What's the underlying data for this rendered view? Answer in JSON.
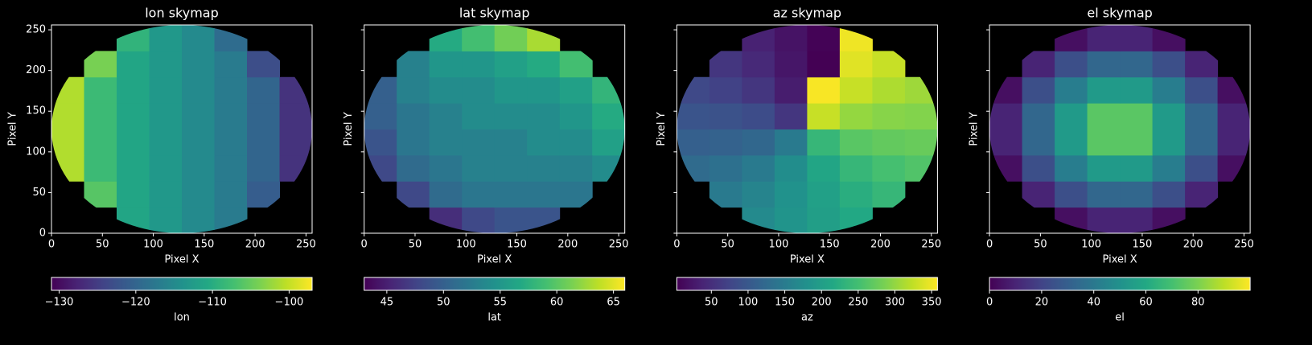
{
  "chart_data": [
    {
      "type": "heatmap",
      "title": "lon skymap",
      "xlabel": "Pixel X",
      "ylabel": "Pixel Y",
      "xlim": [
        0,
        256
      ],
      "ylim": [
        0,
        256
      ],
      "xticks": [
        0,
        50,
        100,
        150,
        200,
        250
      ],
      "yticks": [
        0,
        50,
        100,
        150,
        200,
        250
      ],
      "ytick_labels": true,
      "colormap": "viridis",
      "clim": [
        -131,
        -97
      ],
      "colorbar_ticks": [
        {
          "value": -130,
          "label": "−130"
        },
        {
          "value": -120,
          "label": "−120"
        },
        {
          "value": -110,
          "label": "−110"
        },
        {
          "value": -100,
          "label": "−100"
        }
      ],
      "colorbar_label": "lon",
      "z": [
        [
          null,
          null,
          -111,
          -113,
          -115,
          -117,
          null,
          null
        ],
        [
          null,
          -106,
          -111,
          -113,
          -115,
          -117,
          -121,
          null
        ],
        [
          -101,
          -108,
          -111,
          -113,
          -115,
          -117,
          -120,
          -126
        ],
        [
          -101,
          -108,
          -111,
          -113,
          -115,
          -117,
          -120,
          -126
        ],
        [
          -101,
          -108,
          -111,
          -113,
          -115,
          -117,
          -120,
          -126
        ],
        [
          -101,
          -108,
          -111,
          -113,
          -115,
          -117,
          -120,
          -126
        ],
        [
          null,
          -104,
          -111,
          -113,
          -115,
          -117,
          -123,
          null
        ],
        [
          null,
          null,
          -109,
          -113,
          -115,
          -119,
          null,
          null
        ]
      ]
    },
    {
      "type": "heatmap",
      "title": "lat skymap",
      "xlabel": "Pixel X",
      "ylabel": "Pixel Y",
      "xlim": [
        0,
        256
      ],
      "ylim": [
        0,
        256
      ],
      "xticks": [
        0,
        50,
        100,
        150,
        200,
        250
      ],
      "yticks": [
        0,
        50,
        100,
        150,
        200,
        250
      ],
      "ytick_labels": false,
      "colormap": "viridis",
      "clim": [
        43,
        66
      ],
      "colorbar_ticks": [
        45,
        50,
        55,
        60,
        65
      ],
      "colorbar_label": "lat",
      "z": [
        [
          null,
          null,
          46,
          48,
          49,
          49,
          null,
          null
        ],
        [
          null,
          48,
          51,
          52,
          52,
          52,
          52,
          null
        ],
        [
          48,
          51,
          52,
          53,
          53,
          53,
          53,
          54
        ],
        [
          49,
          52,
          53,
          53,
          53,
          54,
          54,
          56
        ],
        [
          50,
          52,
          53,
          54,
          54,
          54,
          55,
          57
        ],
        [
          50,
          53,
          54,
          54,
          55,
          55,
          56,
          58
        ],
        [
          null,
          53,
          55,
          55,
          56,
          57,
          59,
          null
        ],
        [
          null,
          null,
          57,
          59,
          61,
          63,
          null,
          null
        ]
      ]
    },
    {
      "type": "heatmap",
      "title": "az skymap",
      "xlabel": "Pixel X",
      "ylabel": "Pixel Y",
      "xlim": [
        0,
        256
      ],
      "ylim": [
        0,
        256
      ],
      "xticks": [
        0,
        50,
        100,
        150,
        200,
        250
      ],
      "yticks": [
        0,
        50,
        100,
        150,
        200,
        250
      ],
      "ytick_labels": false,
      "colormap": "viridis",
      "clim": [
        3,
        358
      ],
      "colorbar_ticks": [
        50,
        100,
        150,
        200,
        250,
        300,
        350
      ],
      "colorbar_label": "az",
      "z": [
        [
          null,
          null,
          170,
          185,
          201,
          216,
          null,
          null
        ],
        [
          null,
          148,
          162,
          182,
          204,
          224,
          238,
          null
        ],
        [
          126,
          134,
          148,
          175,
          211,
          238,
          252,
          260
        ],
        [
          111,
          114,
          121,
          148,
          238,
          265,
          272,
          275
        ],
        [
          95,
          92,
          85,
          58,
          328,
          301,
          294,
          291
        ],
        [
          80,
          72,
          58,
          31,
          355,
          328,
          314,
          306
        ],
        [
          null,
          58,
          44,
          24,
          2,
          342,
          328,
          null
        ],
        [
          null,
          null,
          36,
          21,
          5,
          350,
          null,
          null
        ]
      ]
    },
    {
      "type": "heatmap",
      "title": "el skymap",
      "xlabel": "Pixel X",
      "ylabel": "Pixel Y",
      "xlim": [
        0,
        256
      ],
      "ylim": [
        0,
        256
      ],
      "xticks": [
        0,
        50,
        100,
        150,
        200,
        250
      ],
      "yticks": [
        0,
        50,
        100,
        150,
        200,
        250
      ],
      "ytick_labels": false,
      "colormap": "viridis",
      "clim": [
        0,
        100
      ],
      "colorbar_ticks": [
        0,
        20,
        40,
        60,
        80
      ],
      "colorbar_label": "el",
      "z": [
        [
          null,
          null,
          4,
          10,
          10,
          4,
          null,
          null
        ],
        [
          null,
          10,
          24,
          33,
          33,
          24,
          10,
          null
        ],
        [
          4,
          24,
          42,
          54,
          54,
          42,
          24,
          4
        ],
        [
          10,
          33,
          54,
          74,
          74,
          54,
          33,
          10
        ],
        [
          10,
          33,
          54,
          74,
          74,
          54,
          33,
          10
        ],
        [
          4,
          24,
          42,
          54,
          54,
          42,
          24,
          4
        ],
        [
          null,
          10,
          24,
          33,
          33,
          24,
          10,
          null
        ],
        [
          null,
          null,
          4,
          10,
          10,
          4,
          null,
          null
        ]
      ]
    }
  ]
}
